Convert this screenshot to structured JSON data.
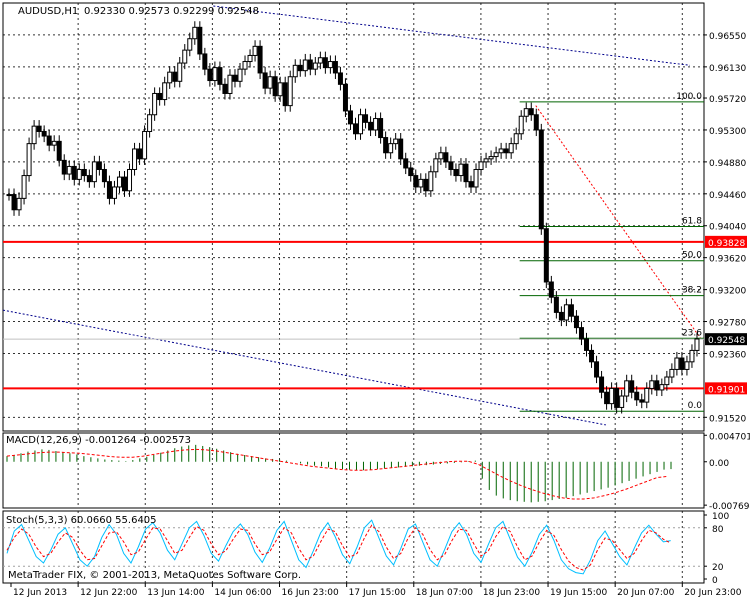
{
  "chart_data": [
    {
      "type": "candlestick",
      "symbol_label": "AUDUSD,H1",
      "ohlc_label": "0.92330 0.92573 0.92299 0.92548",
      "y_ticks": [
        "0.96550",
        "0.96130",
        "0.95720",
        "0.95300",
        "0.94880",
        "0.94460",
        "0.94040",
        "0.93620",
        "0.93200",
        "0.92780",
        "0.92360",
        "0.91520"
      ],
      "y_range": [
        0.9134,
        0.9697
      ],
      "price_markers": [
        {
          "label": "0.93828",
          "value": 0.93828,
          "color": "#ff0000"
        },
        {
          "label": "0.92548",
          "value": 0.92548,
          "color": "#000000"
        },
        {
          "label": "0.91901",
          "value": 0.91901,
          "color": "#ff0000"
        }
      ],
      "fibonacci": {
        "levels": [
          {
            "label": "100.0",
            "value": 0.9567
          },
          {
            "label": "61.8",
            "value": 0.9403
          },
          {
            "label": "50.0",
            "value": 0.9358
          },
          {
            "label": "38.2",
            "value": 0.9312
          },
          {
            "label": "23.6",
            "value": 0.9256
          },
          {
            "label": "0.0",
            "value": 0.916
          }
        ],
        "color": "#006400"
      },
      "trend_lines": [
        {
          "from": {
            "x": 0.3,
            "y": 0.9693
          },
          "to": {
            "x": 0.98,
            "y": 0.9615
          },
          "color": "#00008b",
          "style": "dotted"
        },
        {
          "from": {
            "x": 0.0,
            "y": 0.9293
          },
          "to": {
            "x": 0.86,
            "y": 0.9142
          },
          "color": "#00008b",
          "style": "dotted"
        },
        {
          "from": {
            "x": 0.76,
            "y": 0.9562
          },
          "to": {
            "x": 0.995,
            "y": 0.9256
          },
          "color": "#ff0000",
          "style": "dotted"
        }
      ],
      "closes": [
        0.9445,
        0.9425,
        0.944,
        0.947,
        0.9512,
        0.9535,
        0.9528,
        0.9522,
        0.951,
        0.9515,
        0.949,
        0.9472,
        0.9482,
        0.9465,
        0.9478,
        0.947,
        0.9462,
        0.9488,
        0.9478,
        0.9462,
        0.944,
        0.9455,
        0.9468,
        0.945,
        0.9478,
        0.9505,
        0.9492,
        0.9528,
        0.955,
        0.9578,
        0.957,
        0.9592,
        0.9606,
        0.9594,
        0.9618,
        0.9635,
        0.965,
        0.9665,
        0.963,
        0.961,
        0.9595,
        0.9612,
        0.959,
        0.9578,
        0.9602,
        0.9594,
        0.961,
        0.962,
        0.9628,
        0.964,
        0.9605,
        0.9585,
        0.96,
        0.9575,
        0.9592,
        0.9562,
        0.96,
        0.9615,
        0.9608,
        0.9622,
        0.961,
        0.9618,
        0.9625,
        0.9612,
        0.962,
        0.9605,
        0.959,
        0.9555,
        0.9538,
        0.9525,
        0.955,
        0.954,
        0.953,
        0.9545,
        0.952,
        0.95,
        0.9512,
        0.9518,
        0.9492,
        0.948,
        0.947,
        0.9455,
        0.9465,
        0.945,
        0.9475,
        0.9492,
        0.95,
        0.9488,
        0.9478,
        0.947,
        0.9485,
        0.9462,
        0.9455,
        0.9478,
        0.9488,
        0.9492,
        0.9495,
        0.95,
        0.9505,
        0.95,
        0.9512,
        0.9525,
        0.9548,
        0.9558,
        0.955,
        0.953,
        0.94,
        0.933,
        0.931,
        0.929,
        0.928,
        0.93,
        0.9285,
        0.927,
        0.9255,
        0.924,
        0.9225,
        0.9205,
        0.9185,
        0.917,
        0.919,
        0.9165,
        0.918,
        0.92,
        0.9185,
        0.9175,
        0.9172,
        0.919,
        0.92,
        0.9188,
        0.9195,
        0.9205,
        0.9215,
        0.923,
        0.9215,
        0.9225,
        0.924,
        0.9255
      ],
      "x_ticks": [
        "12 Jun 2013",
        "12 Jun 22:00",
        "13 Jun 14:00",
        "14 Jun 06:00",
        "16 Jun 23:00",
        "17 Jun 15:00",
        "18 Jun 07:00",
        "18 Jun 23:00",
        "19 Jun 15:00",
        "20 Jun 07:00",
        "20 Jun 23:00"
      ]
    },
    {
      "type": "histogram",
      "label": "MACD(12,26,9) -0.001264 -0.002573",
      "y_ticks": [
        "0.004701",
        "0.00",
        "-0.007694"
      ],
      "y_range": [
        -0.0082,
        0.0051
      ],
      "zero_level": 0.0,
      "bar_color": "#006400",
      "signal_color": "#ff0000",
      "values_start_index": 0,
      "values": [
        0.001,
        0.0012,
        0.0015,
        0.0018,
        0.002,
        0.0022,
        0.0021,
        0.0019,
        0.0017,
        0.0015,
        0.0013,
        0.001,
        0.0008,
        0.0006,
        0.0004,
        0.0003,
        0.0002,
        0.0001,
        0.0003,
        0.0006,
        0.0009,
        0.0012,
        0.0016,
        0.002,
        0.0024,
        0.0027,
        0.0029,
        0.003,
        0.0028,
        0.0026,
        0.0023,
        0.002,
        0.0017,
        0.0014,
        0.0012,
        0.001,
        0.0008,
        0.0006,
        0.0005,
        0.0004,
        0.0002,
        0.0,
        -0.0003,
        -0.0005,
        -0.0007,
        -0.0008,
        -0.001,
        -0.0012,
        -0.0013,
        -0.0014,
        -0.0015,
        -0.0015,
        -0.0014,
        -0.0013,
        -0.0012,
        -0.0011,
        -0.001,
        -0.0009,
        -0.0008,
        -0.0007,
        -0.0006,
        -0.0005,
        -0.0004,
        -0.0003,
        -0.0002,
        -0.0001,
        0.0001,
        0.0002,
        -0.003,
        -0.005,
        -0.006,
        -0.0065,
        -0.0068,
        -0.007,
        -0.0071,
        -0.0072,
        -0.0071,
        -0.007,
        -0.0068,
        -0.0066,
        -0.0064,
        -0.0061,
        -0.0058,
        -0.0055,
        -0.0052,
        -0.0049,
        -0.0046,
        -0.0042,
        -0.0038,
        -0.0034,
        -0.003,
        -0.0026,
        -0.0022,
        -0.0018,
        -0.0014,
        -0.0013
      ],
      "signal": [
        0.001,
        0.0012,
        0.0014,
        0.0016,
        0.0017,
        0.0017,
        0.0016,
        0.0015,
        0.0013,
        0.0011,
        0.0009,
        0.0008,
        0.0008,
        0.001,
        0.0013,
        0.0016,
        0.0019,
        0.0021,
        0.0022,
        0.0021,
        0.0019,
        0.0016,
        0.0013,
        0.001,
        0.0007,
        0.0004,
        0.0001,
        -0.0002,
        -0.0005,
        -0.0008,
        -0.001,
        -0.0012,
        -0.0014,
        -0.0015,
        -0.0015,
        -0.0014,
        -0.0012,
        -0.001,
        -0.0008,
        -0.0006,
        -0.0004,
        -0.0002,
        0.0,
        0.0001,
        0.0001,
        -0.0005,
        -0.0015,
        -0.0025,
        -0.0034,
        -0.0042,
        -0.0049,
        -0.0055,
        -0.006,
        -0.0064,
        -0.0066,
        -0.0066,
        -0.0064,
        -0.006,
        -0.0055,
        -0.0049,
        -0.0042,
        -0.0035,
        -0.0028,
        -0.0026
      ]
    },
    {
      "type": "line",
      "label": "Stoch(5,3,3) 60.0660 55.6405",
      "y_ticks": [
        "100",
        "80",
        "20",
        "0"
      ],
      "y_range": [
        0,
        100
      ],
      "levels": [
        80,
        20
      ],
      "series": [
        {
          "color": "#00bfff",
          "values": [
            40,
            75,
            85,
            60,
            35,
            25,
            45,
            70,
            80,
            55,
            30,
            20,
            35,
            65,
            85,
            70,
            40,
            25,
            50,
            78,
            88,
            72,
            45,
            30,
            55,
            80,
            90,
            68,
            40,
            28,
            52,
            74,
            86,
            70,
            42,
            26,
            48,
            76,
            90,
            60,
            30,
            18,
            44,
            72,
            88,
            66,
            38,
            24,
            50,
            80,
            92,
            64,
            36,
            22,
            48,
            78,
            86,
            58,
            30,
            20,
            46,
            74,
            88,
            70,
            40,
            26,
            54,
            80,
            90,
            62,
            34,
            20,
            42,
            70,
            84,
            60,
            30,
            16,
            10,
            8,
            30,
            60,
            75,
            55,
            35,
            22,
            48,
            72,
            84,
            70,
            58,
            60
          ]
        },
        {
          "color": "#ff0000",
          "values": [
            45,
            65,
            78,
            70,
            50,
            35,
            40,
            58,
            72,
            65,
            45,
            30,
            32,
            52,
            72,
            74,
            58,
            38,
            42,
            62,
            80,
            78,
            60,
            40,
            45,
            65,
            82,
            76,
            55,
            38,
            44,
            62,
            78,
            76,
            55,
            38,
            42,
            62,
            80,
            72,
            48,
            30,
            36,
            58,
            78,
            74,
            52,
            34,
            40,
            64,
            84,
            74,
            50,
            32,
            40,
            64,
            80,
            70,
            46,
            30,
            38,
            60,
            78,
            76,
            55,
            36,
            44,
            66,
            82,
            74,
            50,
            30,
            36,
            58,
            76,
            68,
            46,
            28,
            18,
            14,
            22,
            46,
            64,
            60,
            46,
            32,
            40,
            60,
            76,
            72,
            62,
            56
          ]
        }
      ]
    }
  ],
  "watermark": "MetaTrader FIX, © 2001-2013, MetaQuotes Software Corp."
}
